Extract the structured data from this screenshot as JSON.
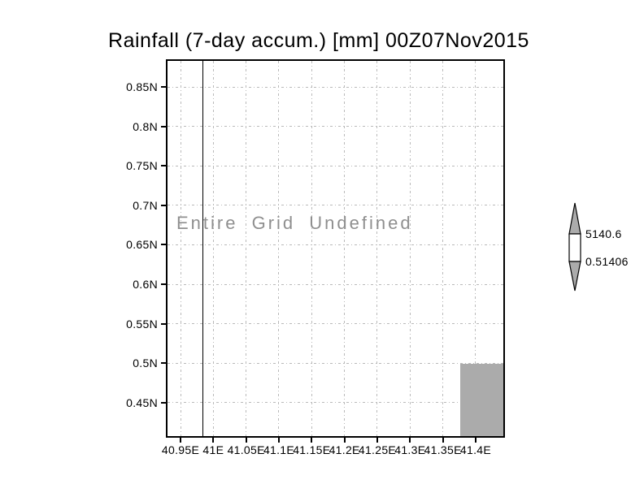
{
  "title": "Rainfall (7-day accum.) [mm] 00Z07Nov2015",
  "annotation": "Entire Grid Undefined",
  "axes": {
    "x_tick_labels": [
      "40.95E",
      "41E",
      "41.05E",
      "41.1E",
      "41.15E",
      "41.2E",
      "41.25E",
      "41.3E",
      "41.35E",
      "41.4E"
    ],
    "y_tick_labels": [
      "0.85N",
      "0.8N",
      "0.75N",
      "0.7N",
      "0.65N",
      "0.6N",
      "0.55N",
      "0.5N",
      "0.45N"
    ]
  },
  "colorbar": {
    "top_label": "5140.6",
    "bottom_label": "0.51406"
  },
  "colors": {
    "background": "#ffffff",
    "frame": "#000000",
    "grid": "#b9b9b9",
    "shade": "#ababab",
    "annotation_text": "#8f8f8f"
  },
  "chart_data": {
    "type": "heatmap",
    "title": "Rainfall (7-day accum.) [mm] 00Z07Nov2015",
    "x_ticks": [
      "40.95E",
      "41E",
      "41.05E",
      "41.1E",
      "41.15E",
      "41.2E",
      "41.25E",
      "41.3E",
      "41.35E",
      "41.4E"
    ],
    "y_ticks": [
      "0.85N",
      "0.8N",
      "0.75N",
      "0.7N",
      "0.65N",
      "0.6N",
      "0.55N",
      "0.5N",
      "0.45N"
    ],
    "xlim_deg_east": [
      40.93,
      41.44
    ],
    "ylim_deg_north": [
      0.41,
      0.885
    ],
    "grid": "dash-dot gray gridlines at every tick",
    "status_annotation": "Entire Grid Undefined",
    "data_values": "all rainfall grid values undefined (no shaded field plotted)",
    "features": {
      "vertical_map_line_deg_east": 40.98,
      "gray_shaded_cell": {
        "lon_range_deg_east": [
          41.38,
          41.44
        ],
        "lat_range_deg_north": [
          0.41,
          0.5
        ]
      }
    },
    "colorbar": {
      "position": "right",
      "orientation": "vertical",
      "labels": [
        "5140.6",
        "0.51406"
      ],
      "segments": [
        "gray up-arrow (> 5140.6)",
        "white band (0.51406 - 5140.6)",
        "gray down-arrow (< 0.51406)"
      ]
    }
  }
}
